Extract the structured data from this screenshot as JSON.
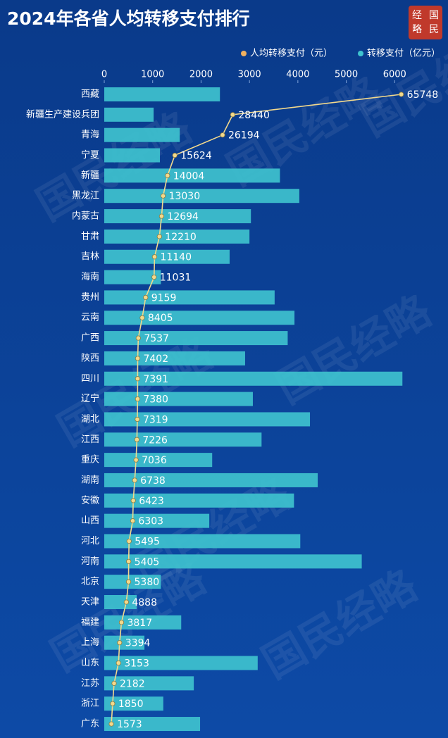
{
  "logo": [
    "经",
    "国",
    "略",
    "民"
  ],
  "watermark": "国民经略",
  "chart_data": {
    "type": "bar",
    "orientation": "horizontal",
    "title": "2024年各省人均转移支付排行",
    "categories": [
      "西藏",
      "新疆生产建设兵团",
      "青海",
      "宁夏",
      "新疆",
      "黑龙江",
      "内蒙古",
      "甘肃",
      "吉林",
      "海南",
      "贵州",
      "云南",
      "广西",
      "陕西",
      "四川",
      "辽宁",
      "湖北",
      "江西",
      "重庆",
      "湖南",
      "安徽",
      "山西",
      "河北",
      "河南",
      "北京",
      "天津",
      "福建",
      "上海",
      "山东",
      "江苏",
      "浙江",
      "广东"
    ],
    "series": [
      {
        "name": "转移支付（亿元）",
        "type": "bar",
        "color": "#3fc4cf",
        "values": [
          2390,
          1020,
          1560,
          1150,
          3630,
          4030,
          3030,
          3000,
          2590,
          1170,
          3520,
          3930,
          3790,
          2910,
          6160,
          3070,
          4250,
          3250,
          2230,
          4410,
          3920,
          2170,
          4050,
          5320,
          1170,
          670,
          1590,
          830,
          3170,
          1850,
          1220,
          1980
        ]
      },
      {
        "name": "人均转移支付（元）",
        "type": "line",
        "axis": "x2",
        "color": "#f3d98c",
        "values": [
          65748,
          28440,
          26194,
          15624,
          14004,
          13030,
          12694,
          12210,
          11140,
          11031,
          9159,
          8405,
          7537,
          7402,
          7391,
          7380,
          7319,
          7226,
          7036,
          6738,
          6423,
          6303,
          5495,
          5405,
          5380,
          4888,
          3817,
          3394,
          3153,
          2182,
          1850,
          1573
        ]
      }
    ],
    "xlim": [
      0,
      7000
    ],
    "xticks": [
      0,
      1000,
      2000,
      3000,
      4000,
      5000,
      6000
    ],
    "x2lim": [
      0,
      75000
    ],
    "legend": "top-right"
  }
}
